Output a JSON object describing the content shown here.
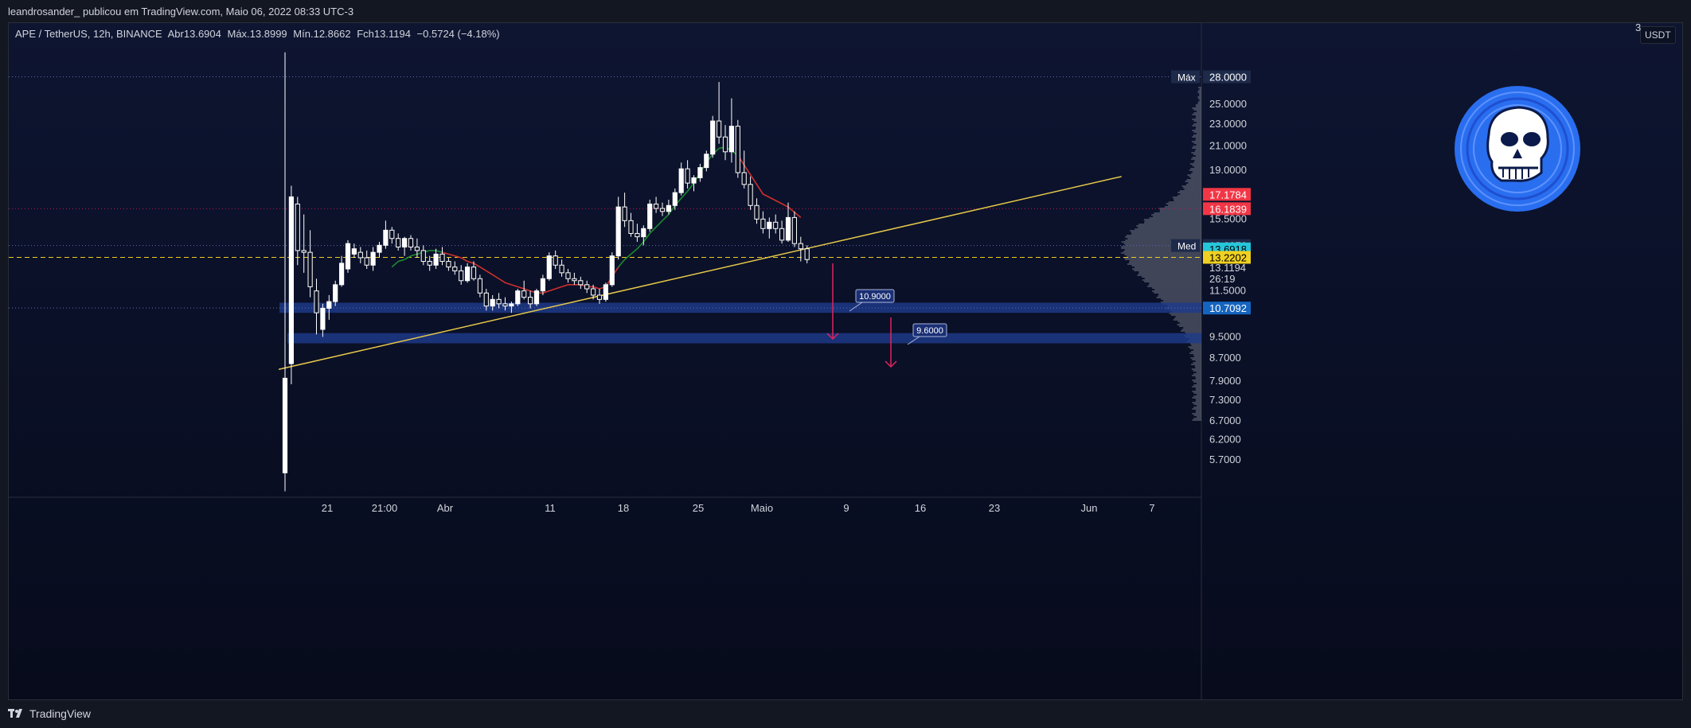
{
  "header": {
    "publisher_line": "leandrosander_ publicou em TradingView.com, Maio 06, 2022 08:33 UTC-3"
  },
  "legend": {
    "symbol": "APE / TetherUS, 12h, BINANCE",
    "open_label": "Abr",
    "open": "13.6904",
    "high_label": "Máx.",
    "high": "13.8999",
    "low_label": "Mín.",
    "low": "12.8662",
    "close_label": "Fch",
    "close": "13.1194",
    "change": "−0.5724 (−4.18%)"
  },
  "currency_button": "USDT",
  "top_price_partial": "3",
  "footer": {
    "brand": "TradingView"
  },
  "colors": {
    "background": "#131722",
    "candle": "#ffffff",
    "trendline": "#e6c84a",
    "ema_green": "#1b8a2e",
    "ema_red": "#d0312d",
    "zone": "#1e3a8a",
    "current_price": "#f0d020"
  },
  "icons": [
    "ape-skull-logo",
    "tradingview-logo-icon",
    "arrow-down-icon"
  ],
  "chart_data": {
    "type": "candlestick",
    "symbol": "APE / TetherUS",
    "interval": "12h",
    "exchange": "BINANCE",
    "y_axis": {
      "scale": "log",
      "range": [
        5.2,
        31
      ],
      "tick_labels": [
        "28.0000",
        "25.0000",
        "23.0000",
        "21.0000",
        "19.0000",
        "17.1784",
        "16.1839",
        "15.5000",
        "13.8876",
        "13.6918",
        "13.2202",
        "13.1194",
        "26:19",
        "11.5000",
        "10.7092",
        "9.5000",
        "8.7000",
        "7.9000",
        "7.3000",
        "6.7000",
        "6.2000",
        "5.7000"
      ]
    },
    "x_axis": {
      "tick_labels": [
        "21",
        "21:00",
        "Abr",
        "11",
        "18",
        "25",
        "Maio",
        "9",
        "16",
        "23",
        "Jun",
        "7"
      ]
    },
    "price_labels": [
      {
        "label": "Máx",
        "value": 28.0,
        "text": "28.0000",
        "color": "#1e2a4a"
      },
      {
        "label": "",
        "value": 17.1784,
        "text": "17.1784",
        "color": "#f23645"
      },
      {
        "label": "",
        "value": 16.1839,
        "text": "16.1839",
        "color": "#f23645"
      },
      {
        "label": "Med",
        "value": 13.8876,
        "text": "13.8876",
        "color": "#1e2a4a"
      },
      {
        "label": "",
        "value": 13.6918,
        "text": "13.6918",
        "color": "#26c6da"
      },
      {
        "label": "",
        "value": 13.2202,
        "text": "13.2202",
        "color": "#f0d020"
      },
      {
        "label": "",
        "value": 10.7092,
        "text": "10.7092",
        "color": "#1565c0"
      }
    ],
    "current_price": {
      "value": 13.1194,
      "text": "13.1194",
      "countdown": "26:19"
    },
    "horizontal_lines": [
      {
        "value": 28.0,
        "style": "dotted",
        "color": "#5b6bb5"
      },
      {
        "value": 16.1839,
        "style": "dotted",
        "color": "#c2185b"
      },
      {
        "value": 13.8876,
        "style": "dotted",
        "color": "#5b6bb5"
      },
      {
        "value": 13.2202,
        "style": "dashed",
        "color": "#f0d020"
      },
      {
        "value": 10.7092,
        "style": "dotted",
        "color": "#5b6bb5"
      }
    ],
    "zones": [
      {
        "from": 10.5,
        "to": 10.95
      },
      {
        "from": 9.25,
        "to": 9.65
      }
    ],
    "targets": [
      {
        "text": "10.9000",
        "value": 10.9
      },
      {
        "text": "9.6000",
        "value": 9.6
      }
    ],
    "candles": [
      [
        5.4,
        31.0,
        5.0,
        8.0
      ],
      [
        8.5,
        17.8,
        7.8,
        17.0
      ],
      [
        16.5,
        17.0,
        12.8,
        13.6
      ],
      [
        13.6,
        15.8,
        12.4,
        13.5
      ],
      [
        13.5,
        14.8,
        11.2,
        11.7
      ],
      [
        11.5,
        12.1,
        9.6,
        10.5
      ],
      [
        9.8,
        10.9,
        9.5,
        10.7
      ],
      [
        10.7,
        11.3,
        10.2,
        11.0
      ],
      [
        11.0,
        12.0,
        10.8,
        11.8
      ],
      [
        11.8,
        13.3,
        11.7,
        12.9
      ],
      [
        12.6,
        14.2,
        12.4,
        14.0
      ],
      [
        13.4,
        14.0,
        13.2,
        13.7
      ],
      [
        13.5,
        13.8,
        12.9,
        13.2
      ],
      [
        13.2,
        13.6,
        12.6,
        12.8
      ],
      [
        12.8,
        13.8,
        12.5,
        13.5
      ],
      [
        13.5,
        14.1,
        13.2,
        13.9
      ],
      [
        13.9,
        15.4,
        13.7,
        14.8
      ],
      [
        14.8,
        15.0,
        14.0,
        14.3
      ],
      [
        14.3,
        14.6,
        13.6,
        13.8
      ],
      [
        13.8,
        14.4,
        13.3,
        14.3
      ],
      [
        14.3,
        14.5,
        13.6,
        13.8
      ],
      [
        13.8,
        14.3,
        13.2,
        13.6
      ],
      [
        13.6,
        13.9,
        12.8,
        13.0
      ],
      [
        13.0,
        13.3,
        12.5,
        12.8
      ],
      [
        12.8,
        13.7,
        12.6,
        13.4
      ],
      [
        13.4,
        13.8,
        12.8,
        13.0
      ],
      [
        13.0,
        13.2,
        12.5,
        12.7
      ],
      [
        12.7,
        13.0,
        12.3,
        12.5
      ],
      [
        12.5,
        12.8,
        11.8,
        12.0
      ],
      [
        12.0,
        12.9,
        11.9,
        12.7
      ],
      [
        12.7,
        13.0,
        12.0,
        12.1
      ],
      [
        12.1,
        12.3,
        11.2,
        11.4
      ],
      [
        11.4,
        11.6,
        10.6,
        10.8
      ],
      [
        10.8,
        11.3,
        10.6,
        11.1
      ],
      [
        11.1,
        11.4,
        10.7,
        10.9
      ],
      [
        10.9,
        11.2,
        10.6,
        10.8
      ],
      [
        10.8,
        11.0,
        10.5,
        10.9
      ],
      [
        10.9,
        11.6,
        10.8,
        11.5
      ],
      [
        11.5,
        12.0,
        11.1,
        11.2
      ],
      [
        11.2,
        11.5,
        10.7,
        10.9
      ],
      [
        10.9,
        11.6,
        10.8,
        11.5
      ],
      [
        11.5,
        12.3,
        11.3,
        12.1
      ],
      [
        12.1,
        13.5,
        12.0,
        13.3
      ],
      [
        13.3,
        13.6,
        12.6,
        12.8
      ],
      [
        12.8,
        13.1,
        12.2,
        12.4
      ],
      [
        12.4,
        12.6,
        11.9,
        12.1
      ],
      [
        12.1,
        12.4,
        11.8,
        12.0
      ],
      [
        12.0,
        12.2,
        11.6,
        11.8
      ],
      [
        11.8,
        12.0,
        11.4,
        11.6
      ],
      [
        11.6,
        11.8,
        11.1,
        11.3
      ],
      [
        11.3,
        11.6,
        10.9,
        11.1
      ],
      [
        11.1,
        11.9,
        11.0,
        11.8
      ],
      [
        11.8,
        13.5,
        11.7,
        13.3
      ],
      [
        13.3,
        17.0,
        13.1,
        16.3
      ],
      [
        16.3,
        17.3,
        15.0,
        15.4
      ],
      [
        15.4,
        15.9,
        14.4,
        14.6
      ],
      [
        14.6,
        15.2,
        14.1,
        14.4
      ],
      [
        14.4,
        15.1,
        13.9,
        14.9
      ],
      [
        14.9,
        16.8,
        14.7,
        16.5
      ],
      [
        16.5,
        17.0,
        15.9,
        16.2
      ],
      [
        16.2,
        16.6,
        15.7,
        16.0
      ],
      [
        16.0,
        16.8,
        15.8,
        16.4
      ],
      [
        16.4,
        17.6,
        16.1,
        17.3
      ],
      [
        17.3,
        19.6,
        17.1,
        19.1
      ],
      [
        19.1,
        19.8,
        17.6,
        18.0
      ],
      [
        18.0,
        18.6,
        17.4,
        18.4
      ],
      [
        18.4,
        19.5,
        18.1,
        19.2
      ],
      [
        19.2,
        20.6,
        18.9,
        20.3
      ],
      [
        20.3,
        23.8,
        20.0,
        23.3
      ],
      [
        23.3,
        27.4,
        21.2,
        21.8
      ],
      [
        21.8,
        22.9,
        19.8,
        20.5
      ],
      [
        20.5,
        25.6,
        19.6,
        22.8
      ],
      [
        22.8,
        23.4,
        18.4,
        18.8
      ],
      [
        18.8,
        20.6,
        17.6,
        17.9
      ],
      [
        17.9,
        18.5,
        16.1,
        16.4
      ],
      [
        16.4,
        16.9,
        15.2,
        15.5
      ],
      [
        15.5,
        16.0,
        14.6,
        14.9
      ],
      [
        14.9,
        15.6,
        14.3,
        15.3
      ],
      [
        15.3,
        15.8,
        14.6,
        14.9
      ],
      [
        14.9,
        15.4,
        14.0,
        14.2
      ],
      [
        14.2,
        16.6,
        14.1,
        15.6
      ],
      [
        15.6,
        16.0,
        13.8,
        14.0
      ],
      [
        14.0,
        14.4,
        13.0,
        13.7
      ],
      [
        13.7,
        13.9,
        12.9,
        13.1
      ]
    ],
    "ema_series": {
      "green": {
        "from_candle": 17,
        "to_candle": 72,
        "values": [
          12.7,
          13.0,
          13.1,
          13.3,
          13.4,
          13.5,
          13.6,
          13.6,
          13.5,
          13.4,
          13.3,
          13.2,
          13.0,
          12.9,
          12.7,
          12.5,
          12.3,
          12.1,
          11.9,
          11.8,
          11.7,
          11.6,
          11.5,
          11.4,
          11.4,
          11.5,
          11.6,
          11.7,
          11.8,
          11.8,
          11.8,
          11.7,
          11.7,
          11.6,
          11.7,
          12.2,
          12.7,
          13.1,
          13.4,
          13.7,
          14.1,
          14.6,
          15.0,
          15.4,
          15.8,
          16.4,
          16.9,
          17.4,
          18.0,
          18.8,
          19.6,
          20.3,
          20.8,
          20.9,
          20.6,
          20.2
        ]
      },
      "red_segments": [
        [
          25,
          52
        ],
        [
          72,
          82
        ]
      ]
    },
    "trendline": {
      "from": {
        "candle": -1,
        "value": 8.3
      },
      "to": {
        "candle": 133,
        "value": 18.5
      }
    },
    "volume_profile": {
      "position": "right",
      "peak_near": 13.9
    },
    "grid": false,
    "legend": "top-left"
  }
}
